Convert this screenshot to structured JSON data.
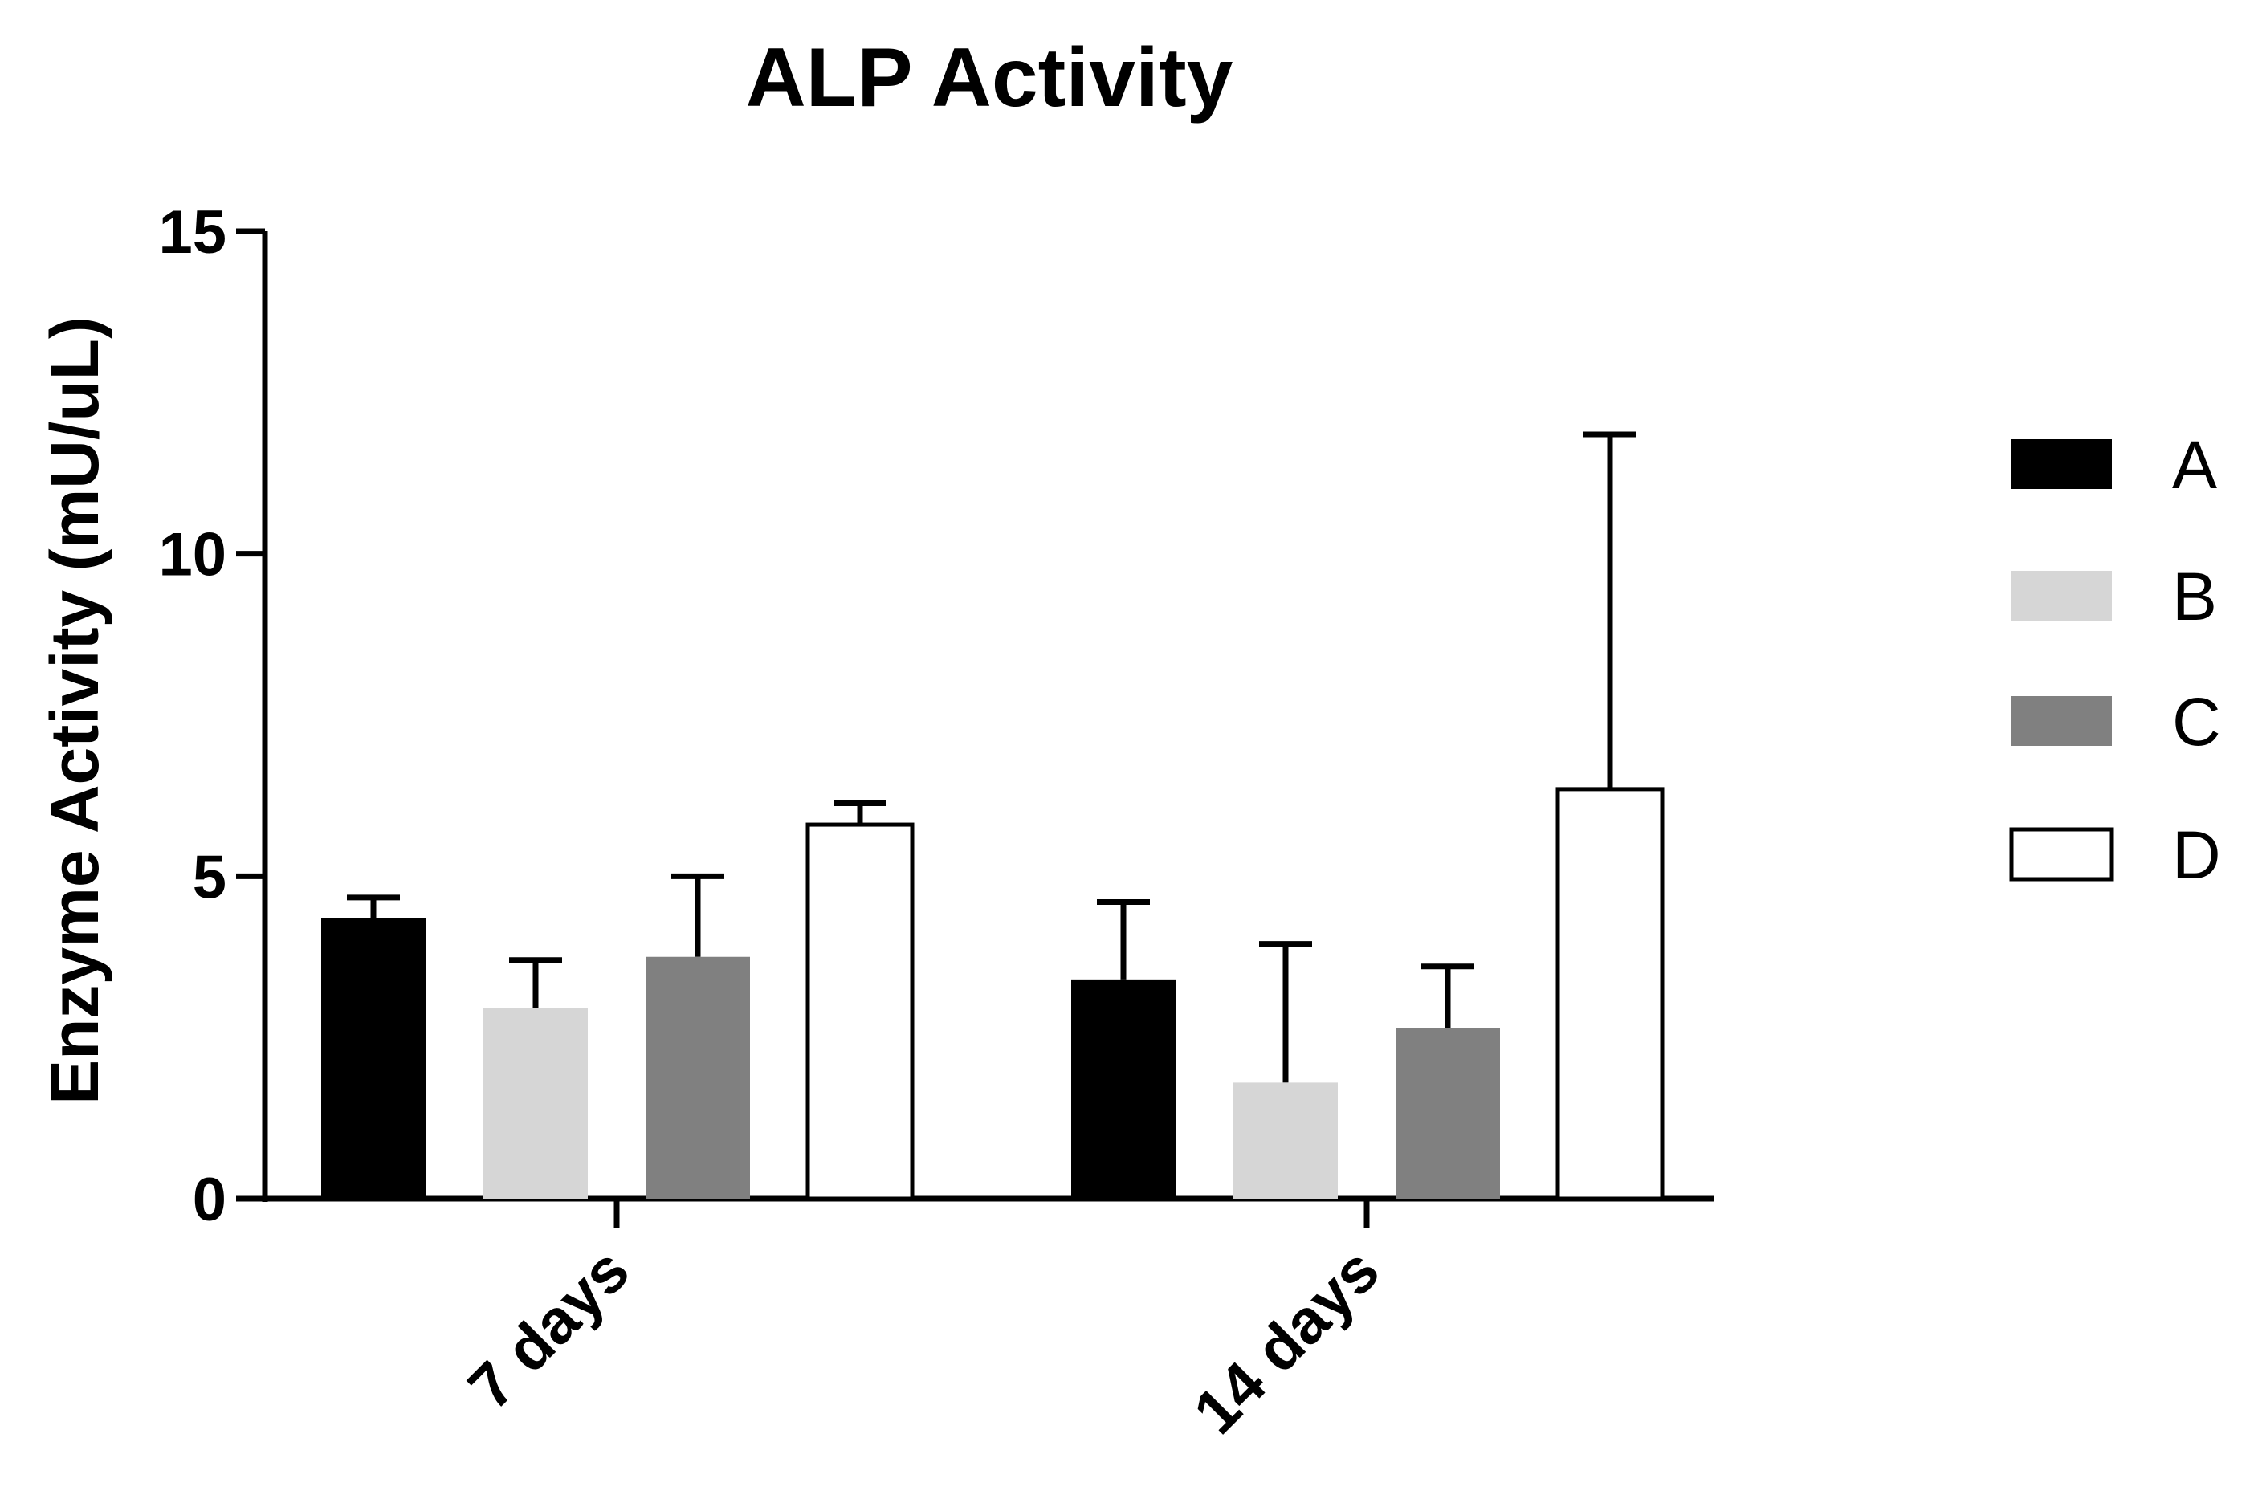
{
  "chart_data": {
    "type": "bar",
    "title": "ALP Activity",
    "xlabel": "",
    "ylabel": "Enzyme Activity (mU/uL)",
    "ylim": [
      0,
      15
    ],
    "yticks": [
      "0",
      "5",
      "10",
      "15"
    ],
    "categories": [
      "7 days",
      "14 days"
    ],
    "legend_position": "right",
    "grid": false,
    "series": [
      {
        "name": "A",
        "color": "#000000",
        "values": [
          4.35,
          3.4
        ],
        "errors": [
          0.32,
          1.2
        ]
      },
      {
        "name": "B",
        "color": "#d6d6d6",
        "values": [
          2.95,
          1.8
        ],
        "errors": [
          0.75,
          2.15
        ]
      },
      {
        "name": "C",
        "color": "#808080",
        "values": [
          3.75,
          2.65
        ],
        "errors": [
          1.25,
          0.95
        ]
      },
      {
        "name": "D",
        "color": "#ffffff",
        "values": [
          5.8,
          6.35
        ],
        "errors": [
          0.33,
          5.5
        ]
      }
    ]
  }
}
